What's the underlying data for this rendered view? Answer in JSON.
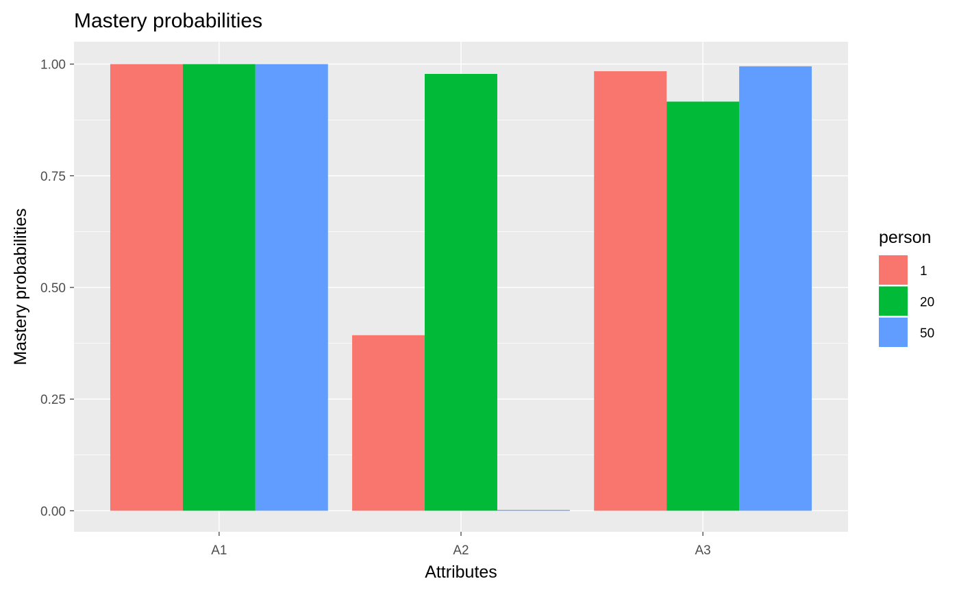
{
  "chart_data": {
    "type": "bar",
    "title": "Mastery probabilities",
    "xlabel": "Attributes",
    "ylabel": "Mastery probabilities",
    "categories": [
      "A1",
      "A2",
      "A3"
    ],
    "series": [
      {
        "name": "1",
        "color": "#F8766D",
        "values": [
          1.0,
          0.393,
          0.984
        ]
      },
      {
        "name": "20",
        "color": "#00BA38",
        "values": [
          1.0,
          0.978,
          0.916
        ]
      },
      {
        "name": "50",
        "color": "#619CFF",
        "values": [
          1.0,
          0.002,
          0.995
        ]
      }
    ],
    "ylim": [
      -0.047,
      1.05
    ],
    "yticks": [
      0,
      0.25,
      0.5,
      0.75,
      1
    ],
    "ytick_labels": [
      "0.00",
      "0.25",
      "0.50",
      "0.75",
      "1.00"
    ],
    "grid": true,
    "legend": {
      "title": "person",
      "placement": "right"
    },
    "panel_background": "#EBEBEB",
    "grid_color": "#FFFFFF"
  }
}
